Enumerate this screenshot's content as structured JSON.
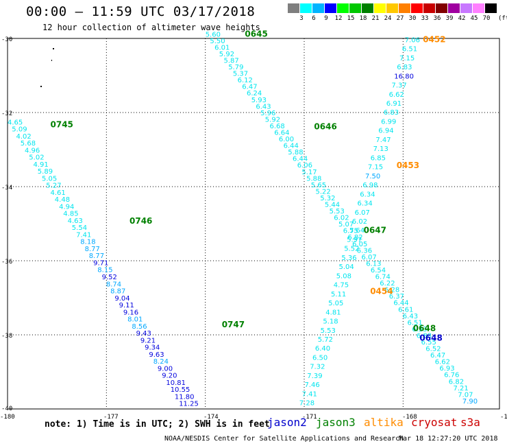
{
  "header": {
    "title": "00:00 – 11:59 UTC 03/17/2018",
    "subtitle": "12 hour collection of altimeter wave heights"
  },
  "legend": {
    "unit": "(ft)",
    "bins": [
      {
        "label": "3",
        "color": "#7f7f7f"
      },
      {
        "label": "6",
        "color": "#00ffff"
      },
      {
        "label": "9",
        "color": "#00b4ff"
      },
      {
        "label": "12",
        "color": "#0000ff"
      },
      {
        "label": "15",
        "color": "#00ff00"
      },
      {
        "label": "18",
        "color": "#00c800"
      },
      {
        "label": "21",
        "color": "#008000"
      },
      {
        "label": "24",
        "color": "#ffff00"
      },
      {
        "label": "27",
        "color": "#ffc800"
      },
      {
        "label": "30",
        "color": "#ff8000"
      },
      {
        "label": "33",
        "color": "#ff0000"
      },
      {
        "label": "36",
        "color": "#c80000"
      },
      {
        "label": "39",
        "color": "#800000"
      },
      {
        "label": "42",
        "color": "#a000a0"
      },
      {
        "label": "45",
        "color": "#c878ff"
      },
      {
        "label": "70",
        "color": "#ff80ff"
      },
      {
        "label": "",
        "color": "#000000"
      }
    ]
  },
  "axes": {
    "x_ticks": [
      "-180",
      "-177",
      "-174",
      "-171",
      "-168",
      "-16"
    ],
    "y_ticks": [
      "-30",
      "-32",
      "-34",
      "-36",
      "-38",
      "-40"
    ]
  },
  "footer": {
    "note": "note: 1) Time is in UTC; 2) SWH is in feet",
    "satellites": [
      {
        "name": "jason2",
        "color": "#0000cc"
      },
      {
        "name": "jason3",
        "color": "#008000"
      },
      {
        "name": "altika",
        "color": "#ff8c00"
      },
      {
        "name": "cryosat",
        "color": "#cc0000"
      },
      {
        "name": "s3a",
        "color": "#cc0000"
      }
    ],
    "credit": "NOAA/NESDIS Center for Satellite Applications and Research",
    "stamp": "Mar 18 12:27:20 UTC 2018"
  },
  "tracks": [
    {
      "id": "track-a",
      "times": [
        {
          "text": "0745",
          "lon": -178.7,
          "lat": -32.4,
          "color": "#008000"
        },
        {
          "text": "0746",
          "lon": -176.3,
          "lat": -35.0,
          "color": "#008000"
        },
        {
          "text": "0747",
          "lon": -173.5,
          "lat": -37.8,
          "color": "#008000"
        }
      ],
      "start": {
        "lon": -180.0,
        "lat": -32.32
      },
      "end": {
        "lon": -174.8,
        "lat": -39.92
      },
      "values": [
        "4.65",
        "5.09",
        "4.02",
        "5.68",
        "4.96",
        "5.02",
        "4.91",
        "5.89",
        "5.05",
        "5.27",
        "4.61",
        "4.48",
        "4.94",
        "4.85",
        "4.63",
        "5.54",
        "7.41",
        "8.18",
        "8.77",
        "8.77",
        "9.71",
        "8.15",
        "9.52",
        "8.74",
        "8.87",
        "9.04",
        "9.11",
        "9.16",
        "8.01",
        "8.56",
        "9.43",
        "9.21",
        "9.34",
        "9.63",
        "8.24",
        "9.00",
        "9.20",
        "10.81",
        "10.55",
        "11.80",
        "11.25"
      ]
    },
    {
      "id": "track-b",
      "times": [
        {
          "text": "0645",
          "lon": -172.8,
          "lat": -29.95,
          "color": "#008000"
        },
        {
          "text": "0646",
          "lon": -170.7,
          "lat": -32.45,
          "color": "#008000"
        },
        {
          "text": "0647",
          "lon": -169.2,
          "lat": -35.25,
          "color": "#008000"
        },
        {
          "text": "0648",
          "lon": -167.7,
          "lat": -37.9,
          "color": "#008000"
        }
      ],
      "start": {
        "lon": -174.0,
        "lat": -29.95
      },
      "end": {
        "lon": -166.2,
        "lat": -39.85
      },
      "values": [
        "5.60",
        "5.50",
        "6.01",
        "5.92",
        "5.87",
        "5.79",
        "5.37",
        "6.12",
        "6.47",
        "6.24",
        "5.93",
        "6.43",
        "5.96",
        "5.92",
        "6.68",
        "6.64",
        "6.00",
        "6.44",
        "5.88",
        "6.44",
        "6.06",
        "5.17",
        "5.88",
        "5.65",
        "5.22",
        "5.32",
        "5.44",
        "5.53",
        "6.02",
        "5.07",
        "6.75",
        "6.82",
        "6.05",
        "6.36",
        "6.07",
        "6.13",
        "6.54",
        "6.74",
        "6.22",
        "6.28",
        "6.37",
        "6.44",
        "6.61",
        "6.43",
        "6.51",
        "6.53",
        "6.88",
        "6.55",
        "6.52",
        "6.47",
        "6.62",
        "6.93",
        "6.76",
        "6.82",
        "7.21",
        "7.07",
        "7.90"
      ]
    },
    {
      "id": "track-c",
      "times": [
        {
          "text": "0452",
          "lon": -167.4,
          "lat": -30.1,
          "color": "#ff8c00"
        },
        {
          "text": "0453",
          "lon": -168.2,
          "lat": -33.5,
          "color": "#ff8c00"
        },
        {
          "text": "0454",
          "lon": -169.0,
          "lat": -36.9,
          "color": "#ff8c00"
        }
      ],
      "start": {
        "lon": -167.95,
        "lat": -30.1
      },
      "end": {
        "lon": -171.15,
        "lat": -39.9
      },
      "values": [
        "7.06",
        "6.51",
        "7.15",
        "6.83",
        "16.80",
        "7.37",
        "6.62",
        "6.91",
        "6.83",
        "6.99",
        "6.94",
        "7.47",
        "7.13",
        "6.85",
        "7.15",
        "7.50",
        "6.98",
        "6.34",
        "6.34",
        "6.07",
        "6.02",
        "5.64",
        "5.97",
        "5.52",
        "5.36",
        "5.04",
        "5.08",
        "4.75",
        "5.11",
        "5.05",
        "4.81",
        "5.18",
        "5.53",
        "5.72",
        "6.40",
        "6.50",
        "7.32",
        "7.39",
        "7.46",
        "7.41",
        "7.28"
      ]
    }
  ],
  "track_colors": {
    "light": "#00e5ee",
    "mid": "#00a8ff",
    "dark": "#0000dd",
    "time_blue": "#0000cc"
  }
}
